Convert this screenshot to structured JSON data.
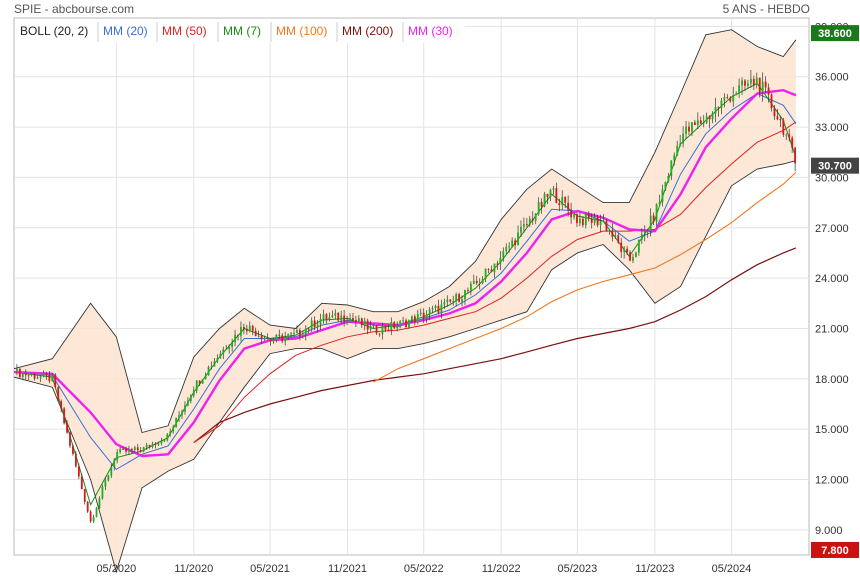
{
  "header": {
    "title": "SPIE - abcbourse.com",
    "period": "5 ANS - HEBDO"
  },
  "legend": [
    {
      "label": "BOLL (20, 2)",
      "color": "#222222"
    },
    {
      "label": "MM (20)",
      "color": "#3b6fd8"
    },
    {
      "label": "MM (50)",
      "color": "#e02020"
    },
    {
      "label": "MM (7)",
      "color": "#1a8a1a"
    },
    {
      "label": "MM (100)",
      "color": "#f07820"
    },
    {
      "label": "MM (200)",
      "color": "#7a1010"
    },
    {
      "label": "MM (30)",
      "color": "#ee22ee"
    }
  ],
  "badges": {
    "high": "38.600",
    "last": "30.700",
    "low": "7.800"
  },
  "chart_data": {
    "type": "line",
    "x": [
      "2019-09",
      "2019-12",
      "2020-03",
      "2020-05",
      "2020-07",
      "2020-09",
      "2020-11",
      "2021-01",
      "2021-03",
      "2021-05",
      "2021-07",
      "2021-09",
      "2021-11",
      "2022-01",
      "2022-03",
      "2022-05",
      "2022-07",
      "2022-09",
      "2022-11",
      "2023-01",
      "2023-03",
      "2023-05",
      "2023-07",
      "2023-09",
      "2023-11",
      "2024-01",
      "2024-03",
      "2024-05",
      "2024-07",
      "2024-09",
      "2024-10"
    ],
    "xticks": [
      "05/2020",
      "11/2020",
      "05/2021",
      "11/2021",
      "05/2022",
      "11/2022",
      "05/2023",
      "11/2023",
      "05/2024"
    ],
    "yticks": [
      "9.000",
      "12.000",
      "15.000",
      "18.000",
      "21.000",
      "24.000",
      "27.000",
      "30.000",
      "33.000",
      "36.000",
      "39.000"
    ],
    "ylim": [
      7.5,
      39.5
    ],
    "series": [
      {
        "name": "Close",
        "values": [
          18.4,
          18.0,
          9.5,
          13.6,
          13.8,
          14.6,
          17.5,
          19.5,
          21.2,
          20.3,
          20.6,
          21.6,
          21.7,
          20.9,
          21.2,
          21.8,
          22.5,
          23.6,
          25.3,
          27.2,
          29.2,
          27.5,
          27.4,
          25.0,
          27.8,
          32.5,
          33.5,
          35.0,
          35.8,
          33.0,
          30.7
        ]
      },
      {
        "name": "MM (7)",
        "values": [
          18.4,
          18.1,
          10.5,
          13.3,
          13.7,
          14.5,
          17.2,
          19.3,
          21.0,
          20.4,
          20.6,
          21.5,
          21.6,
          21.0,
          21.2,
          21.7,
          22.4,
          23.4,
          25.0,
          27.0,
          29.0,
          27.7,
          27.4,
          25.3,
          27.5,
          32.0,
          33.4,
          34.8,
          35.6,
          33.4,
          31.2
        ]
      },
      {
        "name": "MM (20)",
        "values": [
          18.4,
          18.2,
          14.5,
          12.6,
          13.5,
          14.0,
          16.2,
          18.6,
          20.4,
          20.4,
          20.5,
          21.2,
          21.5,
          21.2,
          21.1,
          21.6,
          22.1,
          23.0,
          24.3,
          26.2,
          28.1,
          28.0,
          27.4,
          26.2,
          26.8,
          30.2,
          32.6,
          34.0,
          35.0,
          34.3,
          33.2
        ]
      },
      {
        "name": "MM (30)",
        "values": [
          18.4,
          18.3,
          16.0,
          14.1,
          13.4,
          13.5,
          15.4,
          17.9,
          19.8,
          20.3,
          20.4,
          20.9,
          21.4,
          21.3,
          21.2,
          21.5,
          21.9,
          22.5,
          23.8,
          25.5,
          27.5,
          28.0,
          27.6,
          26.9,
          26.8,
          29.0,
          31.8,
          33.5,
          35.0,
          35.2,
          34.9
        ]
      },
      {
        "name": "MM (50)",
        "values": [
          null,
          null,
          null,
          null,
          null,
          null,
          14.2,
          15.2,
          16.9,
          18.3,
          19.4,
          20.0,
          20.5,
          20.8,
          20.9,
          21.2,
          21.6,
          22.0,
          22.8,
          24.0,
          25.3,
          26.3,
          26.8,
          26.8,
          26.9,
          27.8,
          29.4,
          30.8,
          32.1,
          32.8,
          33.3
        ]
      },
      {
        "name": "MM (100)",
        "values": [
          null,
          null,
          null,
          null,
          null,
          null,
          null,
          null,
          null,
          null,
          null,
          null,
          null,
          17.8,
          18.6,
          19.2,
          19.8,
          20.4,
          21.0,
          21.7,
          22.6,
          23.3,
          23.8,
          24.2,
          24.6,
          25.4,
          26.3,
          27.3,
          28.5,
          29.6,
          30.3
        ]
      },
      {
        "name": "MM (200)",
        "values": [
          null,
          null,
          null,
          null,
          null,
          null,
          14.2,
          15.4,
          16.0,
          16.5,
          16.9,
          17.3,
          17.6,
          17.9,
          18.1,
          18.3,
          18.6,
          18.9,
          19.2,
          19.6,
          20.0,
          20.4,
          20.7,
          21.0,
          21.4,
          22.1,
          22.9,
          23.9,
          24.8,
          25.5,
          25.8
        ]
      },
      {
        "name": "BOLL upper",
        "values": [
          18.6,
          19.2,
          22.5,
          20.5,
          14.8,
          15.2,
          19.3,
          21.0,
          22.2,
          21.2,
          21.0,
          22.5,
          22.4,
          22.0,
          22.0,
          22.6,
          23.5,
          25.0,
          27.5,
          29.3,
          30.5,
          29.5,
          28.5,
          28.5,
          31.5,
          35.0,
          38.5,
          38.8,
          37.8,
          37.2,
          38.2
        ]
      },
      {
        "name": "BOLL lower",
        "values": [
          18.1,
          17.5,
          12.0,
          6.5,
          11.5,
          12.5,
          13.2,
          15.4,
          17.5,
          19.5,
          19.8,
          19.8,
          19.2,
          19.8,
          19.8,
          20.1,
          20.5,
          21.0,
          21.5,
          22.0,
          24.5,
          25.5,
          26.0,
          24.5,
          22.5,
          23.5,
          26.5,
          29.5,
          30.5,
          30.8,
          31.0
        ]
      }
    ]
  }
}
